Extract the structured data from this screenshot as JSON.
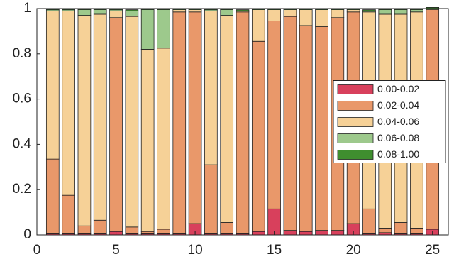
{
  "chart_data": {
    "type": "stacked_bar",
    "x": [
      1,
      2,
      3,
      4,
      5,
      6,
      7,
      8,
      9,
      10,
      11,
      12,
      13,
      14,
      15,
      16,
      17,
      18,
      19,
      20,
      21,
      22,
      23,
      24,
      25
    ],
    "series": [
      {
        "name": "0.00-0.02",
        "color": "#d8405c",
        "values": [
          0.005,
          0.005,
          0.005,
          0.005,
          0.015,
          0.005,
          0.005,
          0.005,
          0.005,
          0.05,
          0.005,
          0.005,
          0.005,
          0.015,
          0.115,
          0.02,
          0.015,
          0.02,
          0.02,
          0.05,
          0.005,
          0.01,
          0.005,
          0.005,
          0.025
        ]
      },
      {
        "name": "0.02-0.04",
        "color": "#e9986a",
        "values": [
          0.33,
          0.17,
          0.035,
          0.06,
          0.945,
          0.03,
          0.01,
          0.02,
          0.98,
          0.935,
          0.305,
          0.05,
          0.98,
          0.84,
          0.83,
          0.945,
          0.91,
          0.9,
          0.94,
          0.935,
          0.11,
          0.02,
          0.05,
          0.025,
          0.97
        ]
      },
      {
        "name": "0.04-0.06",
        "color": "#f6d197",
        "values": [
          0.655,
          0.815,
          0.93,
          0.91,
          0.03,
          0.93,
          0.805,
          0.8,
          0.01,
          0.01,
          0.68,
          0.915,
          0.005,
          0.14,
          0.05,
          0.03,
          0.07,
          0.075,
          0.035,
          0.01,
          0.87,
          0.945,
          0.92,
          0.955,
          0.005
        ]
      },
      {
        "name": "0.06-0.08",
        "color": "#9dc98c",
        "values": [
          0.005,
          0.005,
          0.025,
          0.02,
          0.005,
          0.025,
          0.175,
          0.17,
          0,
          0,
          0.005,
          0.025,
          0,
          0,
          0,
          0,
          0,
          0,
          0,
          0,
          0.005,
          0.02,
          0.02,
          0.01,
          0
        ]
      },
      {
        "name": "0.08-1.00",
        "color": "#3f8e2f",
        "values": [
          0.005,
          0.005,
          0.005,
          0.005,
          0.005,
          0.005,
          0.005,
          0.005,
          0.005,
          0.005,
          0.005,
          0.005,
          0.005,
          0.005,
          0.005,
          0.005,
          0.005,
          0.005,
          0.005,
          0.005,
          0.005,
          0.005,
          0.005,
          0.005,
          0.005
        ]
      }
    ],
    "xlim": [
      0,
      26
    ],
    "xticks": [
      0,
      5,
      10,
      15,
      20,
      25
    ],
    "ylim": [
      0,
      1
    ],
    "yticks": [
      0,
      0.2,
      0.4,
      0.6,
      0.8,
      1
    ],
    "legend": "east"
  }
}
